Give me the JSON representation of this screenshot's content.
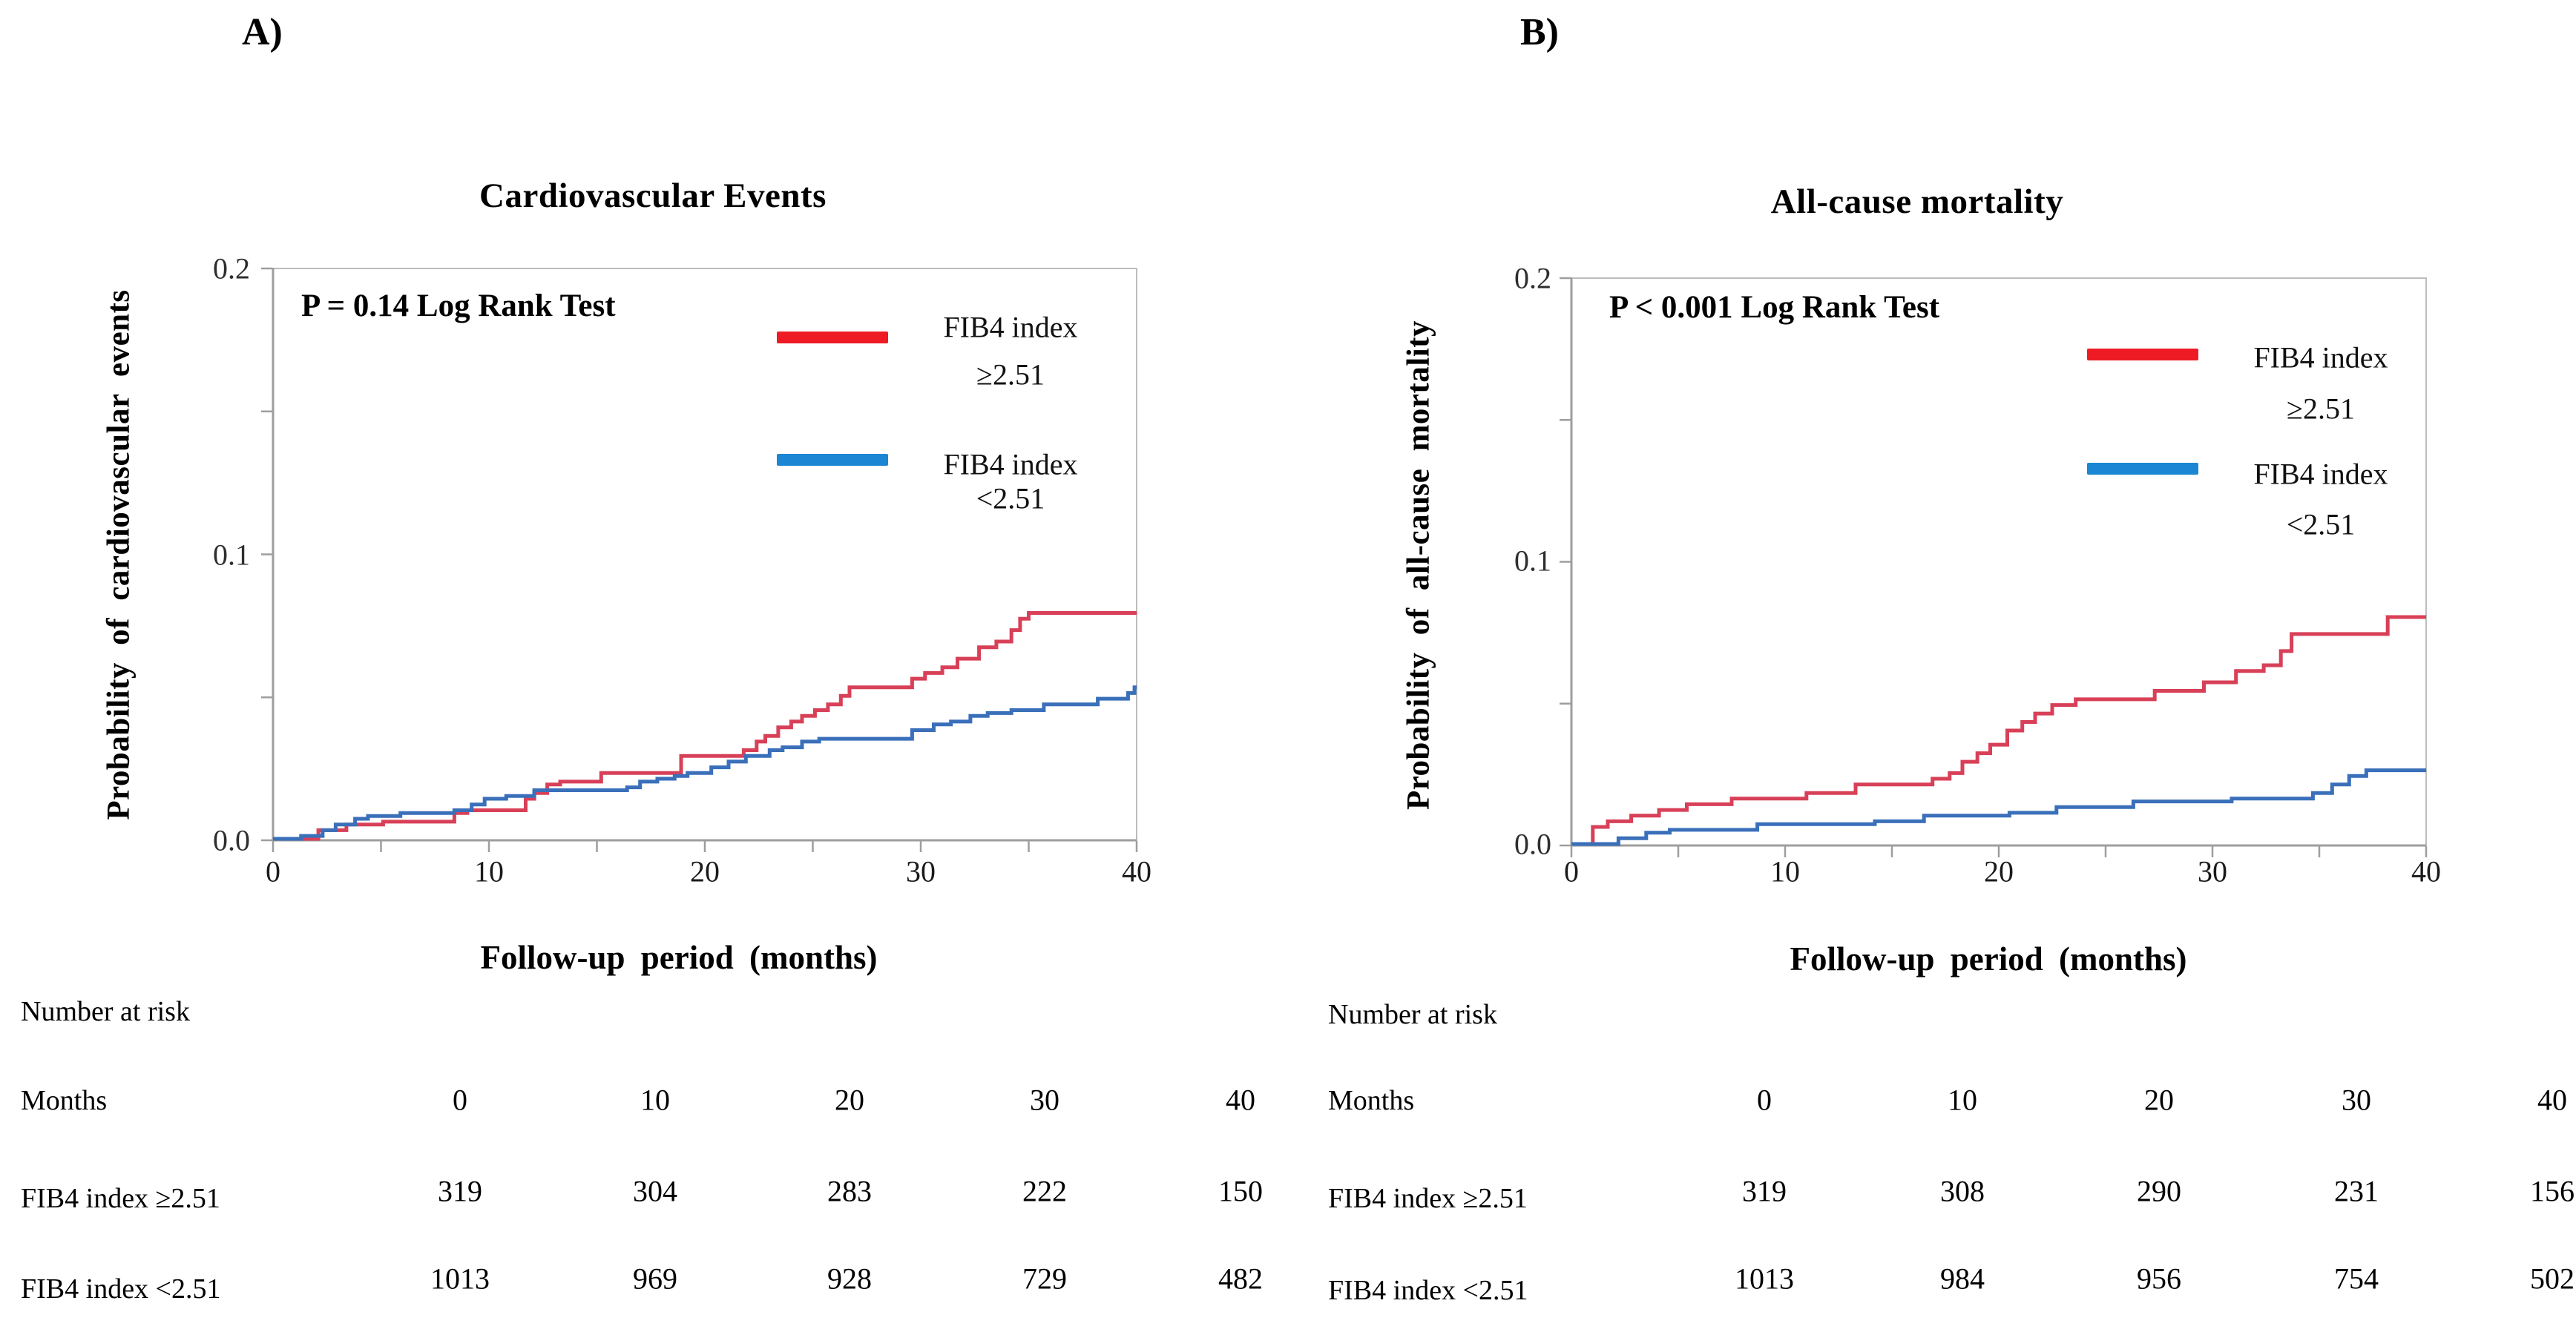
{
  "panels": [
    {
      "panel_label": "A)",
      "title": "Cardiovascular Events",
      "p_value_text": "P = 0.14  Log Rank Test",
      "y_axis_label": "Probability  of cardiovascular  events",
      "x_axis_label": "Follow-up  period  (months)",
      "y_ticks": [
        "0.2",
        "0.1",
        "0.0"
      ],
      "x_ticks": [
        "0",
        "10",
        "20",
        "30",
        "40"
      ],
      "legend": [
        {
          "name": "FIB4 index",
          "threshold": "≥2.51",
          "color": "#ee1b24"
        },
        {
          "name": "FIB4 index",
          "threshold": "<2.51",
          "color": "#1b86d3"
        }
      ],
      "risk_table": {
        "section_label": "Number at risk",
        "row_header": "Months",
        "columns": [
          "0",
          "10",
          "20",
          "30",
          "40"
        ],
        "rows": [
          {
            "label": "FIB4 index ≥2.51",
            "values": [
              "319",
              "304",
              "283",
              "222",
              "150"
            ]
          },
          {
            "label": "FIB4 index <2.51",
            "values": [
              "1013",
              "969",
              "928",
              "729",
              "482"
            ]
          }
        ]
      }
    },
    {
      "panel_label": "B)",
      "title": "All-cause mortality",
      "p_value_text": "P < 0.001 Log Rank Test",
      "y_axis_label": "Probability  of all-cause mortality",
      "x_axis_label": "Follow-up  period  (months)",
      "y_ticks": [
        "0.2",
        "0.1",
        "0.0"
      ],
      "x_ticks": [
        "0",
        "10",
        "20",
        "30",
        "40"
      ],
      "legend": [
        {
          "name": "FIB4 index",
          "threshold": "≥2.51",
          "color": "#ee1b24"
        },
        {
          "name": "FIB4 index",
          "threshold": "<2.51",
          "color": "#1b86d3"
        }
      ],
      "risk_table": {
        "section_label": "Number at risk",
        "row_header": "Months",
        "columns": [
          "0",
          "10",
          "20",
          "30",
          "40"
        ],
        "rows": [
          {
            "label": "FIB4 index ≥2.51",
            "values": [
              "319",
              "308",
              "290",
              "231",
              "156"
            ]
          },
          {
            "label": "FIB4 index <2.51",
            "values": [
              "1013",
              "984",
              "956",
              "754",
              "502"
            ]
          }
        ]
      }
    }
  ],
  "chart_data": [
    {
      "type": "line",
      "subtype": "kaplan-meier-step",
      "title": "Cardiovascular Events",
      "xlabel": "Follow-up period (months)",
      "ylabel": "Probability of cardiovascular events",
      "annotation": "P = 0.14  Log Rank Test",
      "xlim": [
        0,
        40
      ],
      "ylim": [
        0,
        0.2
      ],
      "xticks": [
        0,
        10,
        20,
        30,
        40
      ],
      "xminorticks_every": 5,
      "yticks": [
        0.0,
        0.1,
        0.2
      ],
      "yminorticks": [
        0.05,
        0.15
      ],
      "grid": false,
      "legend_position": "upper-right-inside",
      "series": [
        {
          "name": "FIB4 index ≥2.51",
          "color": "#d84058",
          "steps": [
            [
              0,
              0
            ],
            [
              2.1,
              0.003
            ],
            [
              3.4,
              0.005
            ],
            [
              5.1,
              0.006
            ],
            [
              8.4,
              0.009
            ],
            [
              9.0,
              0.01
            ],
            [
              11.7,
              0.014
            ],
            [
              12.1,
              0.016
            ],
            [
              12.7,
              0.019
            ],
            [
              13.3,
              0.02
            ],
            [
              15.2,
              0.023
            ],
            [
              18.9,
              0.029
            ],
            [
              21.8,
              0.031
            ],
            [
              22.4,
              0.034
            ],
            [
              22.8,
              0.036
            ],
            [
              23.4,
              0.039
            ],
            [
              24.0,
              0.041
            ],
            [
              24.5,
              0.043
            ],
            [
              25.1,
              0.045
            ],
            [
              25.7,
              0.047
            ],
            [
              26.3,
              0.05
            ],
            [
              26.7,
              0.053
            ],
            [
              29.6,
              0.056
            ],
            [
              30.2,
              0.058
            ],
            [
              31.0,
              0.06
            ],
            [
              31.7,
              0.063
            ],
            [
              32.7,
              0.067
            ],
            [
              33.5,
              0.069
            ],
            [
              34.2,
              0.073
            ],
            [
              34.6,
              0.077
            ],
            [
              35.0,
              0.079
            ],
            [
              40,
              0.079
            ]
          ]
        },
        {
          "name": "FIB4 index <2.51",
          "color": "#3a6fba",
          "steps": [
            [
              0,
              0
            ],
            [
              1.3,
              0.001
            ],
            [
              2.3,
              0.003
            ],
            [
              2.9,
              0.005
            ],
            [
              3.8,
              0.007
            ],
            [
              4.4,
              0.008
            ],
            [
              5.9,
              0.009
            ],
            [
              8.4,
              0.01
            ],
            [
              9.2,
              0.012
            ],
            [
              9.8,
              0.014
            ],
            [
              10.8,
              0.015
            ],
            [
              12.1,
              0.017
            ],
            [
              16.4,
              0.018
            ],
            [
              17.0,
              0.02
            ],
            [
              17.8,
              0.021
            ],
            [
              18.6,
              0.022
            ],
            [
              19.2,
              0.023
            ],
            [
              20.3,
              0.025
            ],
            [
              21.1,
              0.027
            ],
            [
              21.9,
              0.029
            ],
            [
              23.0,
              0.031
            ],
            [
              23.6,
              0.032
            ],
            [
              24.5,
              0.034
            ],
            [
              25.3,
              0.035
            ],
            [
              29.6,
              0.038
            ],
            [
              30.6,
              0.04
            ],
            [
              31.4,
              0.041
            ],
            [
              32.3,
              0.043
            ],
            [
              33.1,
              0.044
            ],
            [
              34.2,
              0.045
            ],
            [
              35.7,
              0.047
            ],
            [
              38.2,
              0.049
            ],
            [
              39.6,
              0.051
            ],
            [
              39.9,
              0.053
            ],
            [
              40,
              0.053
            ]
          ]
        }
      ],
      "number_at_risk": {
        "months": [
          0,
          10,
          20,
          30,
          40
        ],
        "FIB4 index ≥2.51": [
          319,
          304,
          283,
          222,
          150
        ],
        "FIB4 index <2.51": [
          1013,
          969,
          928,
          729,
          482
        ]
      }
    },
    {
      "type": "line",
      "subtype": "kaplan-meier-step",
      "title": "All-cause mortality",
      "xlabel": "Follow-up period (months)",
      "ylabel": "Probability of all-cause mortality",
      "annotation": "P < 0.001 Log Rank Test",
      "xlim": [
        0,
        40
      ],
      "ylim": [
        0,
        0.2
      ],
      "xticks": [
        0,
        10,
        20,
        30,
        40
      ],
      "xminorticks_every": 5,
      "yticks": [
        0.0,
        0.1,
        0.2
      ],
      "yminorticks": [
        0.05,
        0.15
      ],
      "grid": false,
      "legend_position": "upper-right-inside",
      "series": [
        {
          "name": "FIB4 index ≥2.51",
          "color": "#d84058",
          "steps": [
            [
              0,
              0
            ],
            [
              1.0,
              0.006
            ],
            [
              1.7,
              0.008
            ],
            [
              2.8,
              0.01
            ],
            [
              4.1,
              0.012
            ],
            [
              5.4,
              0.014
            ],
            [
              7.5,
              0.016
            ],
            [
              11.0,
              0.018
            ],
            [
              13.3,
              0.021
            ],
            [
              16.9,
              0.023
            ],
            [
              17.7,
              0.025
            ],
            [
              18.3,
              0.029
            ],
            [
              19.0,
              0.032
            ],
            [
              19.6,
              0.035
            ],
            [
              20.4,
              0.04
            ],
            [
              21.1,
              0.043
            ],
            [
              21.7,
              0.046
            ],
            [
              22.5,
              0.049
            ],
            [
              23.6,
              0.051
            ],
            [
              27.3,
              0.054
            ],
            [
              29.6,
              0.057
            ],
            [
              31.1,
              0.061
            ],
            [
              32.4,
              0.063
            ],
            [
              33.2,
              0.068
            ],
            [
              33.7,
              0.074
            ],
            [
              38.2,
              0.08
            ],
            [
              40,
              0.08
            ]
          ]
        },
        {
          "name": "FIB4 index <2.51",
          "color": "#3a6fba",
          "steps": [
            [
              0,
              0
            ],
            [
              2.2,
              0.002
            ],
            [
              3.5,
              0.004
            ],
            [
              4.6,
              0.005
            ],
            [
              8.7,
              0.007
            ],
            [
              14.2,
              0.008
            ],
            [
              16.5,
              0.01
            ],
            [
              20.5,
              0.011
            ],
            [
              22.7,
              0.013
            ],
            [
              26.3,
              0.015
            ],
            [
              30.9,
              0.016
            ],
            [
              34.7,
              0.018
            ],
            [
              35.6,
              0.021
            ],
            [
              36.4,
              0.024
            ],
            [
              37.2,
              0.026
            ],
            [
              40,
              0.026
            ]
          ]
        }
      ],
      "number_at_risk": {
        "months": [
          0,
          10,
          20,
          30,
          40
        ],
        "FIB4 index ≥2.51": [
          319,
          308,
          290,
          231,
          156
        ],
        "FIB4 index <2.51": [
          1013,
          984,
          956,
          754,
          502
        ]
      }
    }
  ]
}
